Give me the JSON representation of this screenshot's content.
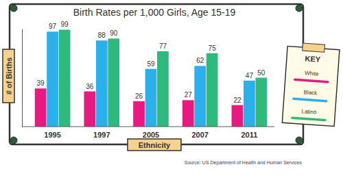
{
  "chart_data": {
    "type": "bar",
    "title": "Birth Rates per 1,000 Girls, Age 15-19",
    "x_label": "Ethnicity",
    "y_label": "# of Births",
    "source": "Source: US Department of Health and Human Services",
    "legend_title": "KEY",
    "categories": [
      "1995",
      "1997",
      "2005",
      "2007",
      "2011"
    ],
    "series": [
      {
        "name": "White",
        "color": "#e8197f",
        "values": [
          39,
          36,
          26,
          27,
          22
        ]
      },
      {
        "name": "Black",
        "color": "#2bb0ec",
        "values": [
          97,
          88,
          59,
          62,
          47
        ]
      },
      {
        "name": "Latino",
        "color": "#2dba7c",
        "values": [
          99,
          90,
          77,
          75,
          50
        ]
      }
    ],
    "ylim": [
      0,
      100
    ],
    "data_labels": true,
    "tick_labels": "x",
    "legend": "right"
  }
}
